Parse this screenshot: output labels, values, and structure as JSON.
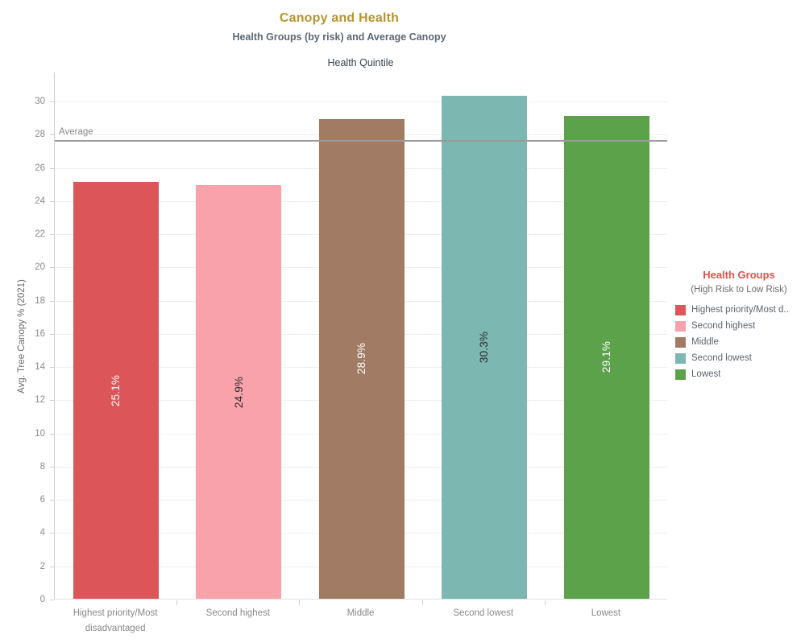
{
  "header": {
    "title": "Canopy and Health",
    "subtitle": "Health Groups (by risk) and Average Canopy"
  },
  "chart_data": {
    "type": "bar",
    "title": "Canopy and Health",
    "subtitle": "Health Groups (by risk) and Average Canopy",
    "x_axis_title": "Health Quintile",
    "ylabel": "Avg. Tree Canopy % (2021)",
    "categories": [
      "Highest priority/Most disadvantaged",
      "Second highest",
      "Middle",
      "Second lowest",
      "Lowest"
    ],
    "values": [
      25.1,
      24.9,
      28.9,
      30.3,
      29.1
    ],
    "value_labels": [
      "25.1%",
      "24.9%",
      "28.9%",
      "30.3%",
      "29.1%"
    ],
    "bar_colors": [
      "#dc5558",
      "#f9a2ab",
      "#a17b64",
      "#7cb7b2",
      "#5ba24b"
    ],
    "value_label_colors": [
      "#ffffff",
      "#2b2b2b",
      "#ffffff",
      "#2b2b2b",
      "#ffffff"
    ],
    "ylim": [
      0,
      31.75
    ],
    "yticks": [
      0,
      2,
      4,
      6,
      8,
      10,
      12,
      14,
      16,
      18,
      20,
      22,
      24,
      26,
      28,
      30
    ],
    "grid": "horizontal",
    "legend_position": "right",
    "reference_line": {
      "label": "Average",
      "value": 27.7
    }
  },
  "legend": {
    "title": "Health Groups",
    "subtitle": "(High Risk to Low Risk)",
    "items": [
      {
        "label": "Highest priority/Most d..",
        "color": "#dc5558"
      },
      {
        "label": "Second highest",
        "color": "#f9a2ab"
      },
      {
        "label": "Middle",
        "color": "#a17b64"
      },
      {
        "label": "Second lowest",
        "color": "#7cb7b2"
      },
      {
        "label": "Lowest",
        "color": "#5ba24b"
      }
    ]
  }
}
